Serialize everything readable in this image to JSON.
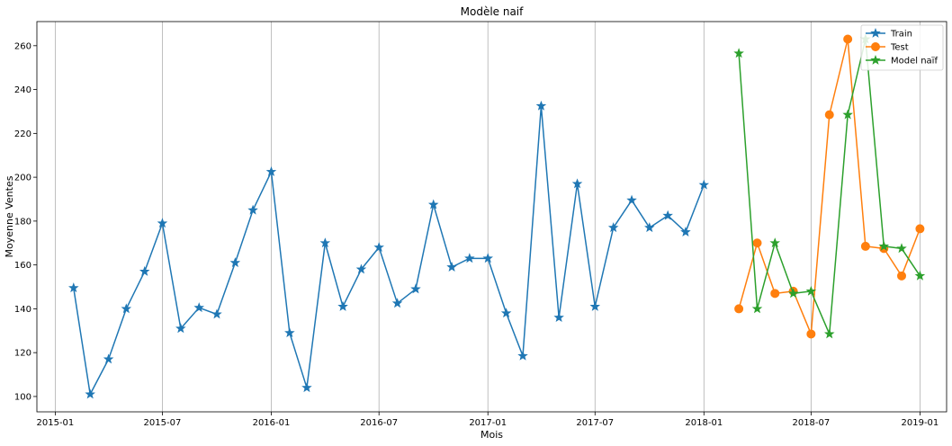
{
  "chart_data": {
    "type": "line",
    "title": "Modèle naif",
    "xlabel": "Mois",
    "ylabel": "Moyenne Ventes",
    "xlim": [
      "2014-12-01",
      "2019-02-15"
    ],
    "ylim": [
      93,
      271
    ],
    "x_tick_labels": [
      "2015-01",
      "2015-07",
      "2016-01",
      "2016-07",
      "2017-01",
      "2017-07",
      "2018-01",
      "2018-07",
      "2019-01"
    ],
    "y_tick_labels": [
      "100",
      "120",
      "140",
      "160",
      "180",
      "200",
      "220",
      "240",
      "260"
    ],
    "y_ticks": [
      100,
      120,
      140,
      160,
      180,
      200,
      220,
      240,
      260
    ],
    "grid": "vertical",
    "legend_position": "top-right",
    "series": [
      {
        "name": "Train",
        "color": "#1f77b4",
        "marker": "star",
        "x": [
          "2015-02-01",
          "2015-03-01",
          "2015-04-01",
          "2015-05-01",
          "2015-06-01",
          "2015-07-01",
          "2015-08-01",
          "2015-09-01",
          "2015-10-01",
          "2015-11-01",
          "2015-12-01",
          "2016-01-01",
          "2016-02-01",
          "2016-03-01",
          "2016-04-01",
          "2016-05-01",
          "2016-06-01",
          "2016-07-01",
          "2016-08-01",
          "2016-09-01",
          "2016-10-01",
          "2016-11-01",
          "2016-12-01",
          "2017-01-01",
          "2017-02-01",
          "2017-03-01",
          "2017-04-01",
          "2017-05-01",
          "2017-06-01",
          "2017-07-01",
          "2017-08-01",
          "2017-09-01",
          "2017-10-01",
          "2017-11-01",
          "2017-12-01",
          "2018-01-01"
        ],
        "y": [
          149.5,
          101,
          117,
          140,
          157,
          179,
          131,
          140.5,
          137.5,
          161,
          185,
          202.5,
          129,
          104,
          170,
          141,
          158,
          168,
          142.5,
          149,
          187.5,
          159,
          163,
          163,
          138,
          118.5,
          232.5,
          136,
          197,
          141,
          177,
          189.5,
          177,
          182.5,
          175,
          196.5
        ]
      },
      {
        "name": "Test",
        "color": "#ff7f0e",
        "marker": "circle",
        "x": [
          "2018-03-01",
          "2018-04-01",
          "2018-05-01",
          "2018-06-01",
          "2018-07-01",
          "2018-08-01",
          "2018-09-01",
          "2018-10-01",
          "2018-11-01",
          "2018-12-01",
          "2019-01-01"
        ],
        "y": [
          140,
          170,
          147,
          148,
          128.5,
          228.5,
          263,
          168.5,
          167.5,
          155,
          176.5
        ]
      },
      {
        "name": "Model naïf",
        "color": "#2ca02c",
        "marker": "star",
        "x": [
          "2018-03-01",
          "2018-04-01",
          "2018-05-01",
          "2018-06-01",
          "2018-07-01",
          "2018-08-01",
          "2018-09-01",
          "2018-10-01",
          "2018-11-01",
          "2018-12-01",
          "2019-01-01"
        ],
        "y": [
          256.5,
          140,
          170,
          147,
          148,
          128.5,
          228.5,
          263,
          168.5,
          167.5,
          155
        ]
      }
    ]
  }
}
